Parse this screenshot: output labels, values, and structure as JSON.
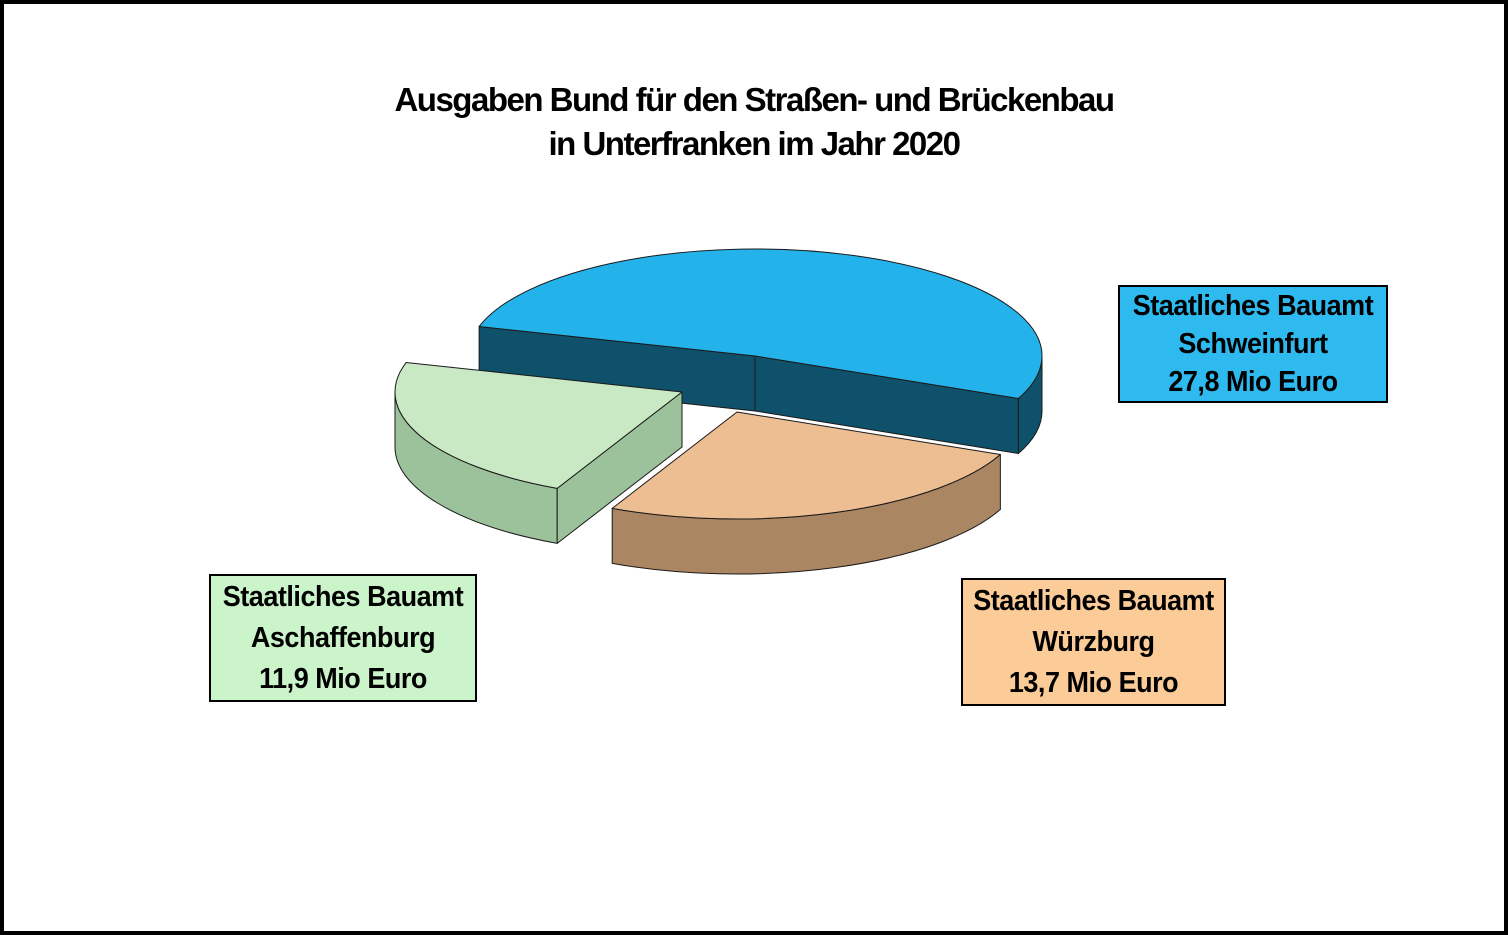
{
  "title": {
    "line1": "Ausgaben Bund für den Straßen- und Brückenbau",
    "line2": "in Unterfranken im Jahr 2020"
  },
  "chart_data": {
    "type": "pie",
    "style": "3d-exploded",
    "title": "Ausgaben Bund für den Straßen- und Brückenbau in Unterfranken im Jahr 2020",
    "unit": "Mio Euro",
    "total": 53.4,
    "start_angle_deg": 196,
    "clockwise": true,
    "legend_position": "callout-boxes",
    "series": [
      {
        "id": "schweinfurt",
        "label": "Staatliches Bauamt Schweinfurt",
        "value": 27.8,
        "value_label": "27,8 Mio Euro",
        "color_top": "#24B2EB",
        "color_side": "#0F516B"
      },
      {
        "id": "wuerzburg",
        "label": "Staatliches Bauamt Würzburg",
        "value": 13.7,
        "value_label": "13,7 Mio Euro",
        "color_top": "#EDBE92",
        "color_side": "#AB8663"
      },
      {
        "id": "aschaffenburg",
        "label": "Staatliches Bauamt Aschaffenburg",
        "value": 11.9,
        "value_label": "11,9 Mio Euro",
        "color_top": "#C9E9C5",
        "color_side": "#9CC29B"
      }
    ]
  },
  "callouts": [
    {
      "id": "schweinfurt",
      "lines": [
        "Staatliches Bauamt",
        "Schweinfurt",
        "27,8 Mio Euro"
      ],
      "bg": "#2EB9EF"
    },
    {
      "id": "aschaffenburg",
      "lines": [
        "Staatliches Bauamt",
        "Aschaffenburg",
        "11,9 Mio Euro"
      ],
      "bg": "#CCF4CA"
    },
    {
      "id": "wuerzburg",
      "lines": [
        "Staatliches Bauamt",
        "Würzburg",
        "13,7 Mio Euro"
      ],
      "bg": "#FBCB98"
    }
  ]
}
